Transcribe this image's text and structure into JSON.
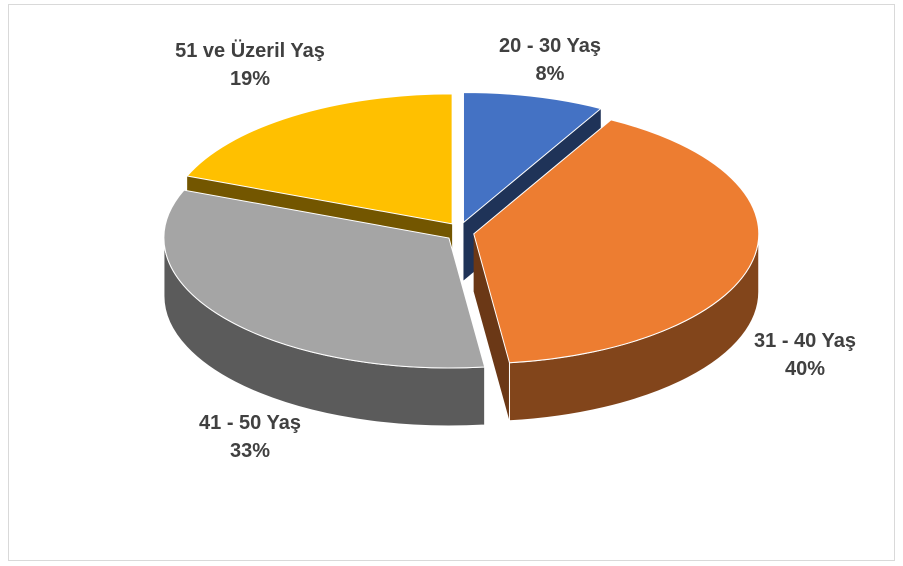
{
  "chart_data": {
    "type": "pie",
    "categories": [
      "20 - 30 Yaş",
      "31 - 40 Yaş",
      "41 - 50 Yaş",
      "51 ve Üzeril Yaş"
    ],
    "values": [
      8,
      40,
      33,
      19
    ],
    "value_labels": [
      "8%",
      "40%",
      "33%",
      "19%"
    ],
    "colors": [
      "#4472c4",
      "#ed7d31",
      "#a5a5a5",
      "#ffc000"
    ]
  }
}
